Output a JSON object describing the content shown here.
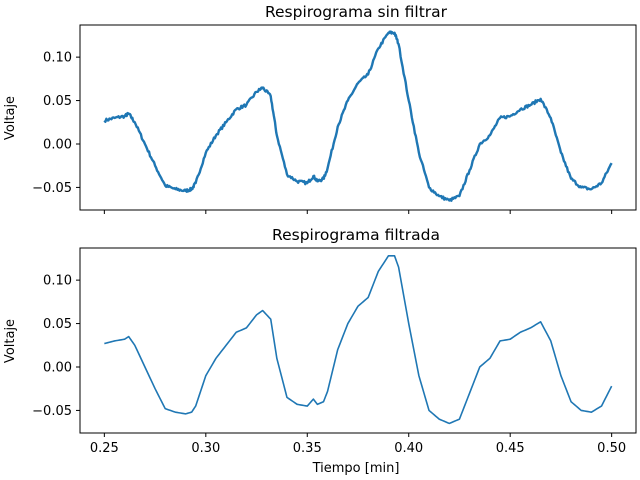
{
  "colors": {
    "series": "#1f77b4",
    "background": "#ffffff",
    "axes": "#000000"
  },
  "chart_data": [
    {
      "type": "line",
      "title": "Respirograma sin filtrar",
      "xlabel": "",
      "ylabel": "Voltaje",
      "xlim": [
        0.238,
        0.512
      ],
      "ylim": [
        -0.076,
        0.137
      ],
      "xticks": [
        0.25,
        0.3,
        0.35,
        0.4,
        0.45,
        0.5
      ],
      "xtick_labels_visible": false,
      "yticks": [
        -0.05,
        0.0,
        0.05,
        0.1
      ],
      "ytick_labels": [
        "−0.05",
        "0.00",
        "0.05",
        "0.10"
      ],
      "grid": false,
      "noisy": true,
      "x": [
        0.25,
        0.255,
        0.26,
        0.262,
        0.265,
        0.27,
        0.275,
        0.28,
        0.285,
        0.29,
        0.293,
        0.295,
        0.3,
        0.305,
        0.31,
        0.315,
        0.32,
        0.325,
        0.328,
        0.332,
        0.335,
        0.34,
        0.345,
        0.35,
        0.353,
        0.355,
        0.358,
        0.36,
        0.365,
        0.37,
        0.375,
        0.38,
        0.385,
        0.39,
        0.393,
        0.395,
        0.4,
        0.405,
        0.41,
        0.415,
        0.42,
        0.425,
        0.43,
        0.435,
        0.44,
        0.445,
        0.45,
        0.455,
        0.46,
        0.465,
        0.47,
        0.475,
        0.48,
        0.485,
        0.49,
        0.495,
        0.5
      ],
      "y": [
        0.027,
        0.03,
        0.032,
        0.035,
        0.025,
        0.0,
        -0.025,
        -0.048,
        -0.052,
        -0.054,
        -0.052,
        -0.045,
        -0.01,
        0.01,
        0.025,
        0.04,
        0.045,
        0.06,
        0.065,
        0.055,
        0.01,
        -0.035,
        -0.043,
        -0.045,
        -0.037,
        -0.043,
        -0.04,
        -0.028,
        0.02,
        0.05,
        0.07,
        0.08,
        0.11,
        0.128,
        0.128,
        0.115,
        0.05,
        -0.01,
        -0.05,
        -0.06,
        -0.065,
        -0.06,
        -0.03,
        0.0,
        0.01,
        0.03,
        0.032,
        0.04,
        0.045,
        0.052,
        0.03,
        -0.01,
        -0.04,
        -0.05,
        -0.052,
        -0.045,
        -0.022
      ]
    },
    {
      "type": "line",
      "title": "Respirograma filtrada",
      "xlabel": "Tiempo [min]",
      "ylabel": "Voltaje",
      "xlim": [
        0.238,
        0.512
      ],
      "ylim": [
        -0.076,
        0.137
      ],
      "xticks": [
        0.25,
        0.3,
        0.35,
        0.4,
        0.45,
        0.5
      ],
      "xtick_labels": [
        "0.25",
        "0.30",
        "0.35",
        "0.40",
        "0.45",
        "0.50"
      ],
      "xtick_labels_visible": true,
      "yticks": [
        -0.05,
        0.0,
        0.05,
        0.1
      ],
      "ytick_labels": [
        "−0.05",
        "0.00",
        "0.05",
        "0.10"
      ],
      "grid": false,
      "noisy": false,
      "x": [
        0.25,
        0.255,
        0.26,
        0.262,
        0.265,
        0.27,
        0.275,
        0.28,
        0.285,
        0.29,
        0.293,
        0.295,
        0.3,
        0.305,
        0.31,
        0.315,
        0.32,
        0.325,
        0.328,
        0.332,
        0.335,
        0.34,
        0.345,
        0.35,
        0.353,
        0.355,
        0.358,
        0.36,
        0.365,
        0.37,
        0.375,
        0.38,
        0.385,
        0.39,
        0.393,
        0.395,
        0.4,
        0.405,
        0.41,
        0.415,
        0.42,
        0.425,
        0.43,
        0.435,
        0.44,
        0.445,
        0.45,
        0.455,
        0.46,
        0.465,
        0.47,
        0.475,
        0.48,
        0.485,
        0.49,
        0.495,
        0.5
      ],
      "y": [
        0.027,
        0.03,
        0.032,
        0.035,
        0.025,
        0.0,
        -0.025,
        -0.048,
        -0.052,
        -0.054,
        -0.052,
        -0.045,
        -0.01,
        0.01,
        0.025,
        0.04,
        0.045,
        0.06,
        0.065,
        0.055,
        0.01,
        -0.035,
        -0.043,
        -0.045,
        -0.037,
        -0.043,
        -0.04,
        -0.028,
        0.02,
        0.05,
        0.07,
        0.08,
        0.11,
        0.128,
        0.128,
        0.115,
        0.05,
        -0.01,
        -0.05,
        -0.06,
        -0.065,
        -0.06,
        -0.03,
        0.0,
        0.01,
        0.03,
        0.032,
        0.04,
        0.045,
        0.052,
        0.03,
        -0.01,
        -0.04,
        -0.05,
        -0.052,
        -0.045,
        -0.022
      ]
    }
  ]
}
